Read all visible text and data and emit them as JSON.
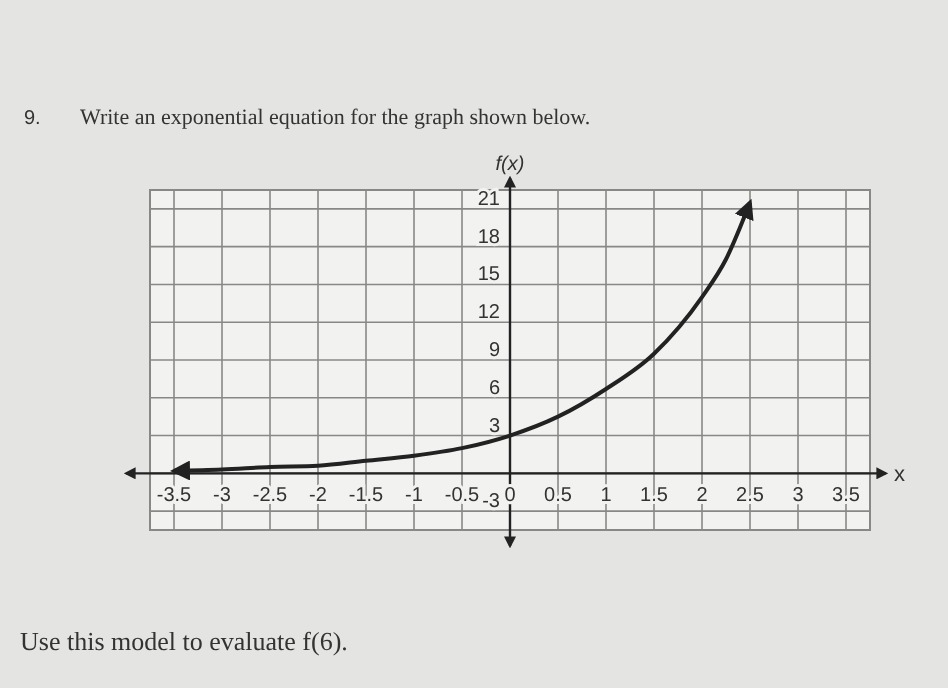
{
  "chart_data": {
    "type": "line",
    "title": "Write an exponential equation for the graph shown below.",
    "xlabel": "x",
    "ylabel": "f(x)",
    "annotations": [
      "9.",
      "Use this model to evaluate f(6)."
    ],
    "x": [
      -3.5,
      -3,
      -2.5,
      -2,
      -1.5,
      -1,
      -0.5,
      0,
      0.5,
      1,
      1.5,
      2,
      2.25,
      2.5
    ],
    "series": [
      {
        "color": "#222222",
        "values": [
          0.2,
          0.3,
          0.5,
          0.6,
          1,
          1.4,
          2,
          3,
          4.5,
          6.7,
          9.5,
          14,
          17,
          21.5
        ]
      }
    ],
    "xlim": [
      -3.75,
      3.75
    ],
    "ylim": [
      -4.5,
      22.5
    ],
    "xticks": [
      -3.5,
      -3,
      -2.5,
      -2,
      -1.5,
      -1,
      -0.5,
      0,
      0.5,
      1,
      1.5,
      2,
      2.5,
      3,
      3.5
    ],
    "yticks": [
      -3,
      {
        "value": 0,
        "label": null
      },
      3,
      6,
      9,
      12,
      15,
      18,
      21
    ],
    "grid": true,
    "marker": "none",
    "line_style": "solid"
  }
}
